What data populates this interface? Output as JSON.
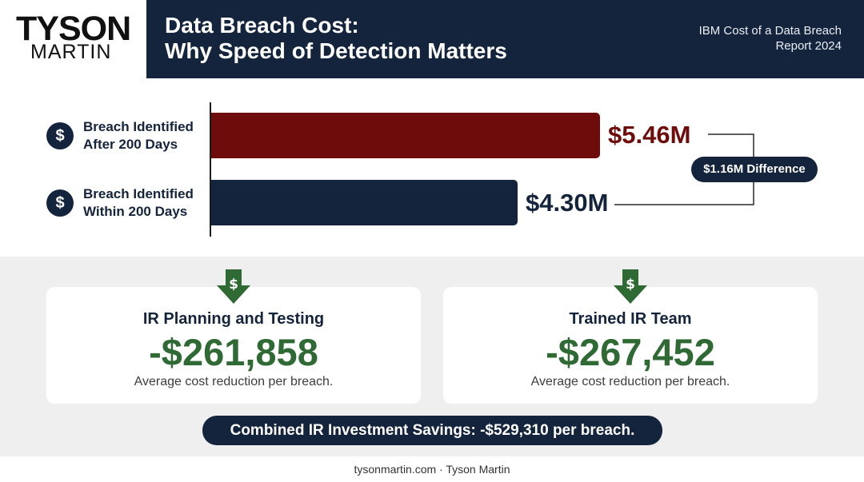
{
  "brand": {
    "logo_line1": "TYSON",
    "logo_line2": "MARTIN"
  },
  "header": {
    "title_line1": "Data Breach Cost:",
    "title_line2": "Why Speed of Detection Matters",
    "source_line1": "IBM Cost of a Data Breach",
    "source_line2": "Report 2024"
  },
  "icons": {
    "row_icon": "dollar-icon",
    "card_icon": "dollar-down-arrow-icon"
  },
  "colors": {
    "navy": "#14243c",
    "maroon": "#6e0b0b",
    "green": "#2f6a35",
    "gray_bg": "#efefef"
  },
  "chart_data": {
    "type": "bar",
    "orientation": "horizontal",
    "categories": [
      "Breach Identified After 200 Days",
      "Breach Identified Within 200 Days"
    ],
    "category_lines": [
      [
        "Breach Identified",
        "After 200 Days"
      ],
      [
        "Breach Identified",
        "Within 200 Days"
      ]
    ],
    "values": [
      5.46,
      4.3
    ],
    "value_labels": [
      "$5.46M",
      "$4.30M"
    ],
    "unit": "USD millions",
    "bar_colors": [
      "#6e0b0b",
      "#14243c"
    ],
    "label_colors": [
      "#6e0b0b",
      "#14243c"
    ],
    "xlim": [
      0,
      5.46
    ],
    "annotation": "$1.16M Difference",
    "grid": false
  },
  "cards": [
    {
      "heading": "IR Planning and Testing",
      "value": "-$261,858",
      "caption": "Average cost reduction per breach."
    },
    {
      "heading": "Trained IR Team",
      "value": "-$267,452",
      "caption": "Average cost reduction per breach."
    }
  ],
  "combined": "Combined IR Investment Savings: -$529,310 per breach.",
  "footer": "tysonmartin.com · Tyson Martin"
}
